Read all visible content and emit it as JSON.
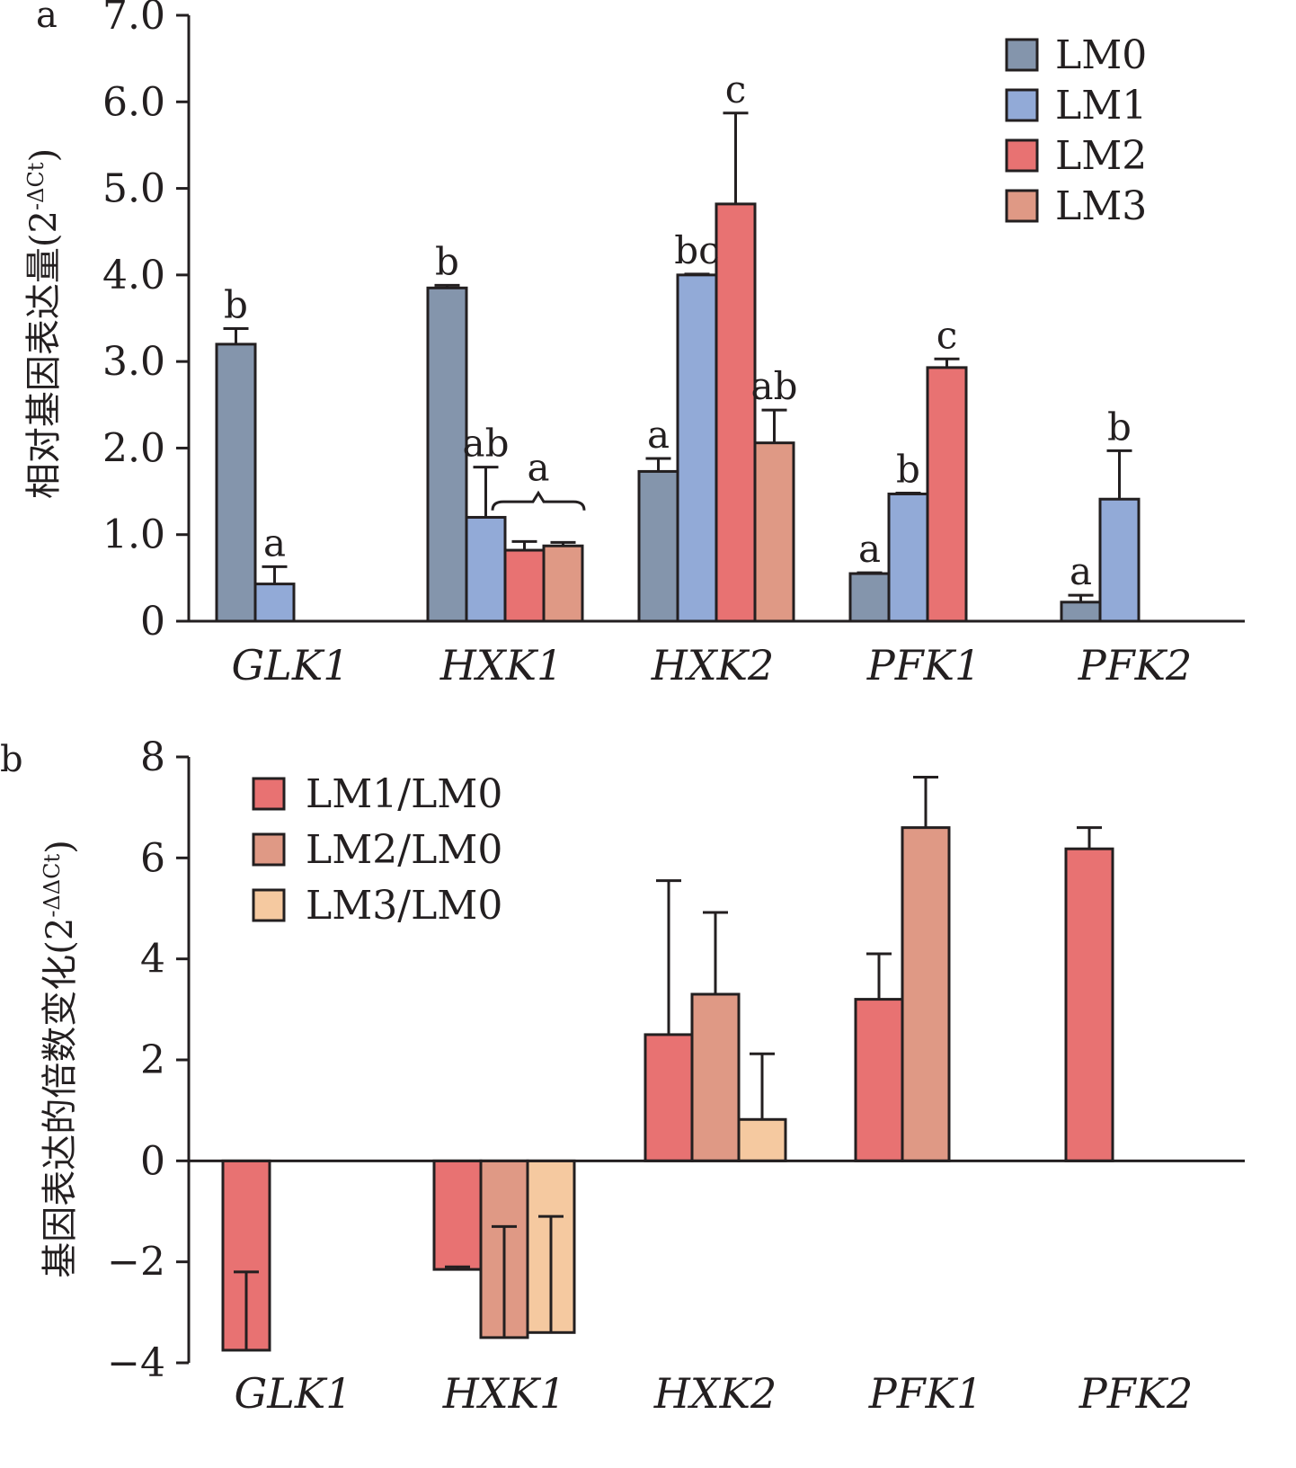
{
  "chart_data": [
    {
      "type": "bar",
      "panel": "a",
      "ylabel": "相对基因表达量(2",
      "ylabel_sup": "-ΔCt",
      "ylabel_close": ")",
      "ylim": [
        0,
        7
      ],
      "ticks": [
        {
          "value": 0,
          "label": "0"
        },
        {
          "value": 1,
          "label": "1.0"
        },
        {
          "value": 2,
          "label": "2.0"
        },
        {
          "value": 3,
          "label": "3.0"
        },
        {
          "value": 4,
          "label": "4.0"
        },
        {
          "value": 5,
          "label": "5.0"
        },
        {
          "value": 6,
          "label": "6.0"
        },
        {
          "value": 7,
          "label": "7.0"
        }
      ],
      "categories": [
        "GLK1",
        "HXK1",
        "HXK2",
        "PFK1",
        "PFK2"
      ],
      "legend_position": "top-right",
      "series": [
        {
          "name": "LM0",
          "color": "#8495ac",
          "values": [
            3.2,
            3.85,
            1.73,
            0.55,
            0.22
          ],
          "errors": [
            0.18,
            0.03,
            0.15,
            0.01,
            0.08
          ],
          "labels": [
            "b",
            "b",
            "a",
            "a",
            "a"
          ]
        },
        {
          "name": "LM1",
          "color": "#92aad7",
          "values": [
            0.43,
            1.2,
            4.0,
            1.47,
            1.41
          ],
          "errors": [
            0.2,
            0.58,
            0.01,
            0.01,
            0.56
          ],
          "labels": [
            "a",
            "ab",
            "bc",
            "b",
            "b"
          ]
        },
        {
          "name": "LM2",
          "color": "#e87272",
          "values": [
            null,
            0.82,
            4.82,
            2.93,
            null
          ],
          "errors": [
            null,
            0.1,
            1.05,
            0.1,
            null
          ],
          "labels": [
            "",
            "",
            "c",
            "c",
            ""
          ]
        },
        {
          "name": "LM3",
          "color": "#df9985",
          "values": [
            null,
            0.87,
            2.06,
            null,
            null
          ],
          "errors": [
            null,
            0.04,
            0.38,
            null,
            null
          ],
          "labels": [
            "",
            "",
            "ab",
            "",
            ""
          ]
        }
      ],
      "bracket_label": "a"
    },
    {
      "type": "bar",
      "panel": "b",
      "ylabel": "基因表达的倍数变化(2",
      "ylabel_sup": "-ΔΔCt",
      "ylabel_close": ")",
      "ylim": [
        -4,
        8
      ],
      "ticks": [
        {
          "value": -4,
          "label": "−4"
        },
        {
          "value": -2,
          "label": "−2"
        },
        {
          "value": 0,
          "label": "0"
        },
        {
          "value": 2,
          "label": "2"
        },
        {
          "value": 4,
          "label": "4"
        },
        {
          "value": 6,
          "label": "6"
        },
        {
          "value": 8,
          "label": "8"
        }
      ],
      "categories": [
        "GLK1",
        "HXK1",
        "HXK2",
        "PFK1",
        "PFK2"
      ],
      "legend_position": "top-left",
      "series": [
        {
          "name": "LM1/LM0",
          "color": "#e87272",
          "values": [
            -3.75,
            -2.15,
            2.5,
            3.2,
            6.18
          ],
          "errors": [
            1.55,
            0.05,
            3.05,
            0.9,
            0.42
          ]
        },
        {
          "name": "LM2/LM0",
          "color": "#df9985",
          "values": [
            null,
            -3.5,
            3.3,
            6.6,
            null
          ],
          "errors": [
            null,
            2.2,
            1.62,
            1.0,
            null
          ]
        },
        {
          "name": "LM3/LM0",
          "color": "#f5c9a0",
          "values": [
            null,
            -3.4,
            0.82,
            null,
            null
          ],
          "errors": [
            null,
            2.3,
            1.3,
            null,
            null
          ]
        }
      ]
    }
  ]
}
